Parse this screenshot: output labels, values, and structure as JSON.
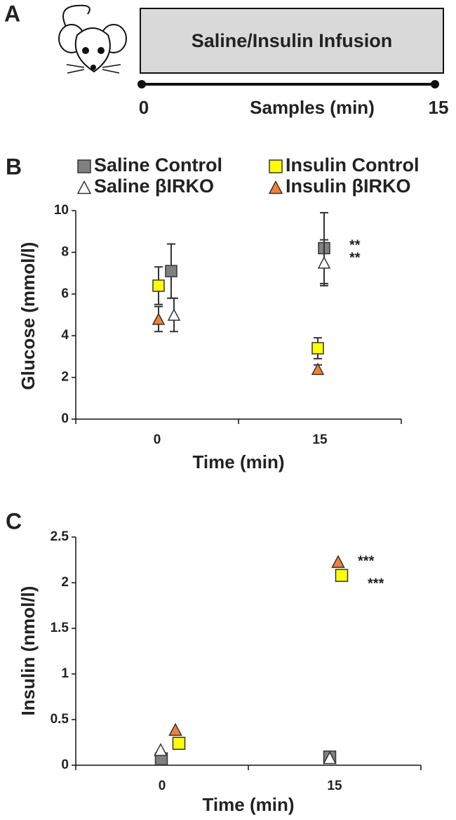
{
  "diagram": {
    "panel_label": "A",
    "box_text": "Saline/Insulin  Infusion",
    "start": "0",
    "axis_label": "Samples (min)",
    "end": "15"
  },
  "chart_data": [
    {
      "type": "scatter",
      "panel_label": "B",
      "y_label": "Glucose  (mmol/l)",
      "x_label": "Time (min)",
      "categories": [
        "0",
        "15"
      ],
      "ylim": [
        0,
        10
      ],
      "yticks": [
        0,
        2,
        4,
        6,
        8,
        10
      ],
      "series": [
        {
          "name": "Saline Control",
          "color": "#808080",
          "marker": "square",
          "values": [
            7.1,
            8.2
          ],
          "errors": [
            1.3,
            1.7
          ]
        },
        {
          "name": "Insulin Control",
          "color": "#ffff00",
          "marker": "square",
          "values": [
            6.4,
            3.4
          ],
          "errors": [
            0.9,
            0.5
          ]
        },
        {
          "name": "Saline βIRKO",
          "color": "#ffffff",
          "marker": "triangle",
          "values": [
            5.0,
            7.5
          ],
          "errors": [
            0.8,
            1.1
          ]
        },
        {
          "name": "Insulin βIRKO",
          "color": "#f4812f",
          "marker": "triangle",
          "values": [
            4.8,
            2.4
          ],
          "errors": [
            0.6,
            0.2
          ]
        }
      ],
      "annotations": [
        "**",
        "**"
      ]
    },
    {
      "type": "scatter",
      "panel_label": "C",
      "y_label": "Insulin  (nmol/l)",
      "x_label": "Time (min)",
      "categories": [
        "0",
        "15"
      ],
      "ylim": [
        0,
        2.5
      ],
      "yticks": [
        0,
        0.5,
        1,
        1.5,
        2,
        2.5
      ],
      "series": [
        {
          "color": "#808080",
          "marker": "square",
          "values": [
            0.07,
            0.09
          ]
        },
        {
          "color": "#ffff00",
          "marker": "square",
          "values": [
            0.24,
            2.08
          ]
        },
        {
          "color": "#ffffff",
          "marker": "triangle",
          "values": [
            0.17,
            0.08
          ]
        },
        {
          "color": "#f4812f",
          "marker": "triangle",
          "values": [
            0.39,
            2.23
          ]
        }
      ],
      "annotations": [
        "***",
        "***"
      ]
    }
  ]
}
